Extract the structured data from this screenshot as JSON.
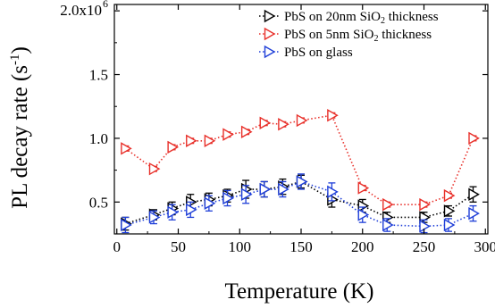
{
  "chart_data": {
    "type": "line",
    "xlabel": "Temperature (K)",
    "ylabel": "PL decay rate (s",
    "ylabel_sup": "-1",
    "ylabel_close": ")",
    "xlim": [
      -2,
      302
    ],
    "ylim": [
      0.25,
      2.05
    ],
    "xticks": [
      0,
      50,
      100,
      150,
      200,
      250,
      300
    ],
    "xtick_labels": [
      "0",
      "50",
      "100",
      "150",
      "200",
      "250",
      "300"
    ],
    "yticks": [
      0.5,
      1.0,
      1.5,
      2.0
    ],
    "ytick_labels": [
      "0.5",
      "1.0",
      "1.5",
      "2.0x10"
    ],
    "ytop_exponent": "6",
    "legend_position": "top-right",
    "series": [
      {
        "name": "PbS on 20nm SiO",
        "name_sub": "2",
        "name_suffix": " thickness",
        "color": "#000000",
        "marker": "right-triangle",
        "line": "dotted",
        "x": [
          7,
          30,
          45,
          60,
          75,
          90,
          105,
          120,
          135,
          150,
          175,
          200,
          220,
          250,
          270,
          290
        ],
        "y": [
          0.33,
          0.4,
          0.45,
          0.5,
          0.52,
          0.55,
          0.6,
          0.6,
          0.62,
          0.66,
          0.52,
          0.47,
          0.38,
          0.38,
          0.43,
          0.56
        ],
        "err": [
          0.05,
          0.04,
          0.05,
          0.06,
          0.05,
          0.05,
          0.07,
          0.06,
          0.06,
          0.05,
          0.06,
          0.05,
          0.04,
          0.04,
          0.04,
          0.06
        ]
      },
      {
        "name": "PbS on 5nm SiO",
        "name_sub": "2",
        "name_suffix": " thickness",
        "color": "#e8302a",
        "marker": "right-triangle",
        "line": "dotted",
        "x": [
          7,
          30,
          45,
          60,
          75,
          90,
          105,
          120,
          135,
          150,
          175,
          200,
          220,
          250,
          270,
          290
        ],
        "y": [
          0.92,
          0.76,
          0.93,
          0.98,
          0.98,
          1.03,
          1.05,
          1.12,
          1.11,
          1.14,
          1.18,
          0.61,
          0.48,
          0.48,
          0.55,
          1.0
        ],
        "err": [
          0.02,
          0.02,
          0.02,
          0.02,
          0.02,
          0.02,
          0.02,
          0.02,
          0.02,
          0.02,
          0.02,
          0.02,
          0.02,
          0.02,
          0.02,
          0.02
        ]
      },
      {
        "name": "PbS on glass",
        "name_sub": "",
        "name_suffix": "",
        "color": "#1f3fd8",
        "marker": "right-triangle",
        "line": "dotted",
        "x": [
          7,
          30,
          45,
          60,
          75,
          90,
          105,
          120,
          135,
          150,
          175,
          200,
          220,
          250,
          270,
          290
        ],
        "y": [
          0.32,
          0.38,
          0.42,
          0.44,
          0.49,
          0.53,
          0.56,
          0.6,
          0.6,
          0.66,
          0.58,
          0.4,
          0.32,
          0.31,
          0.32,
          0.41
        ],
        "err": [
          0.06,
          0.05,
          0.06,
          0.06,
          0.06,
          0.06,
          0.07,
          0.06,
          0.06,
          0.06,
          0.07,
          0.06,
          0.05,
          0.05,
          0.05,
          0.06
        ]
      }
    ]
  }
}
